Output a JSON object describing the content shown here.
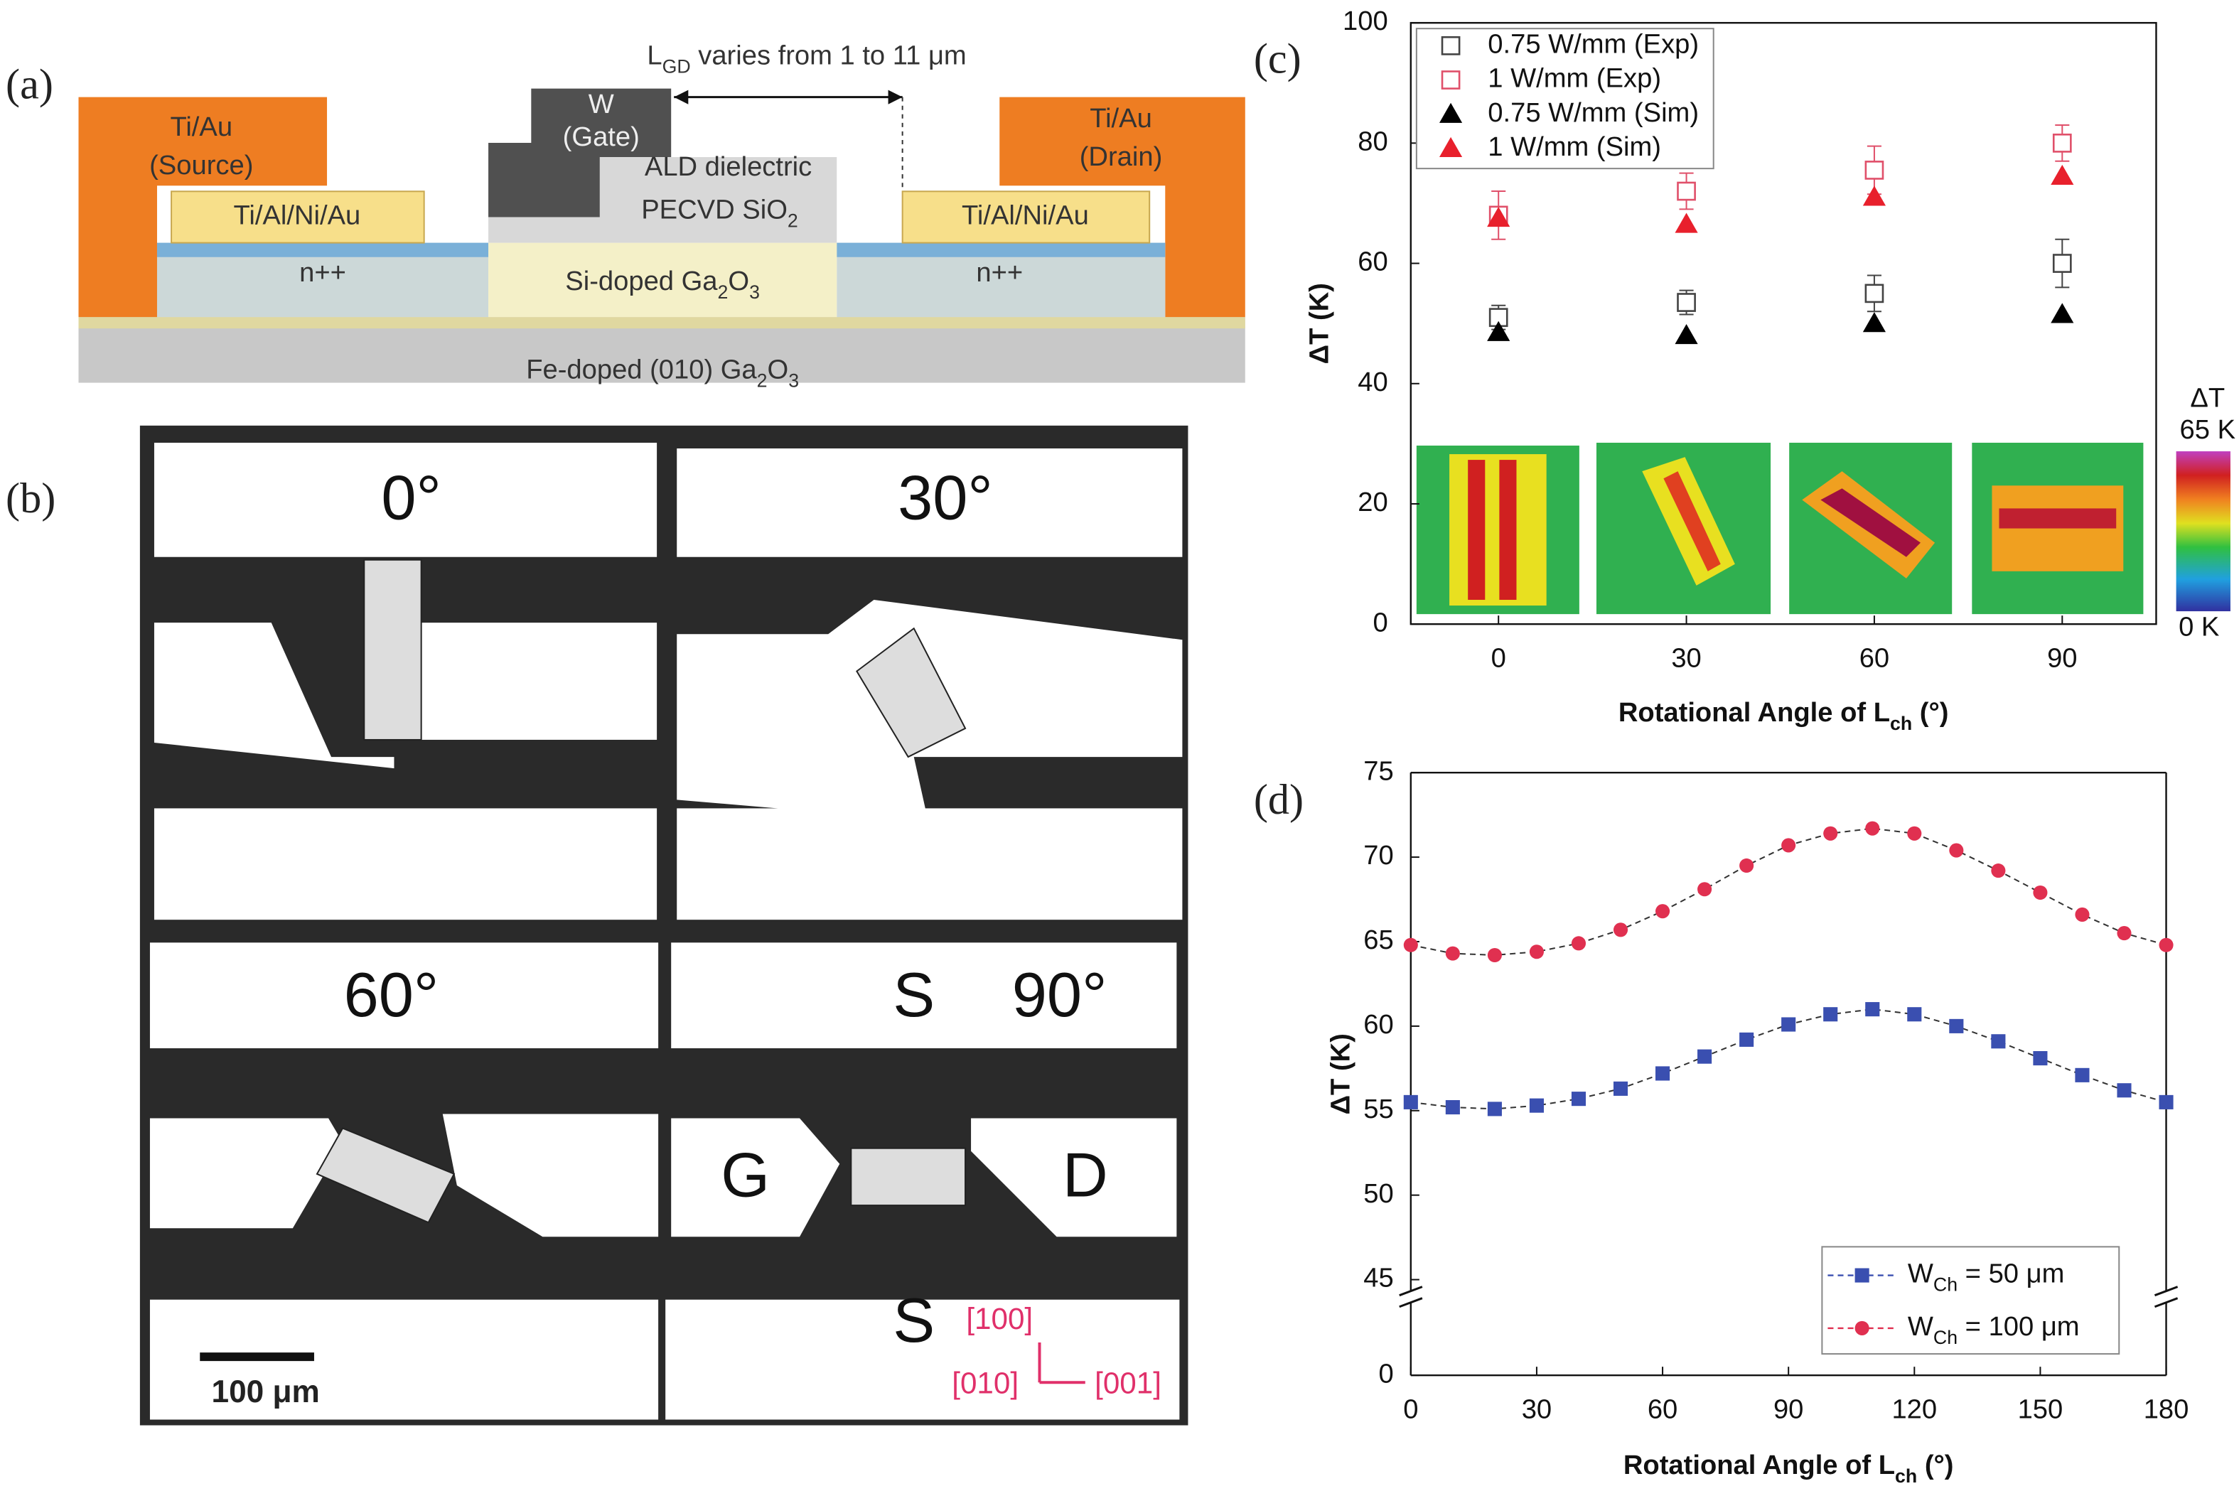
{
  "diagram_a": {
    "panel": "(a)",
    "lgd": [
      "L",
      "GD",
      " varies from 1 to 11 μm"
    ],
    "source_metal": "Ti/Au",
    "source": "(Source)",
    "drain_metal": "Ti/Au",
    "drain": "(Drain)",
    "gate_metal": "W",
    "gate": "(Gate)",
    "ald": "ALD dielectric",
    "pecvd": [
      "PECVD SiO",
      "2"
    ],
    "ohmic_left": "Ti/Al/Ni/Au",
    "ohmic_right": "Ti/Al/Ni/Au",
    "nplus_left": "n++",
    "nplus_right": "n++",
    "channel": [
      "Si-doped Ga",
      "2",
      "O",
      "3"
    ],
    "substrate": [
      "Fe-doped (010) Ga",
      "2",
      "O",
      "3"
    ]
  },
  "micrograph_b": {
    "panel": "(b)",
    "angles": [
      "0°",
      "30°",
      "60°",
      "90°"
    ],
    "source_top": "S",
    "gate": "G",
    "drain": "D",
    "source_bottom": "S",
    "scale": "100 μm",
    "dir_100": "[100]",
    "dir_010": "[010]",
    "dir_001": "[001]"
  },
  "chart_data": [
    {
      "type": "scatter",
      "panel": "(c)",
      "xlabel": [
        "Rotational Angle of L",
        "ch",
        " (°)"
      ],
      "ylabel": "ΔT (K)",
      "x": [
        0,
        30,
        60,
        90
      ],
      "xlim": [
        -14,
        105
      ],
      "xticks": [
        0,
        30,
        60,
        90
      ],
      "ylim": [
        0,
        100
      ],
      "yticks": [
        0,
        20,
        40,
        60,
        80,
        100
      ],
      "legend": "upper left",
      "colorbar": {
        "title": "ΔT",
        "max_label": "65 K",
        "min_label": "0 K"
      },
      "series": [
        {
          "name": "0.75 W/mm (Exp)",
          "color": "#444444",
          "marker": "square-open",
          "values": [
            51,
            53.5,
            55,
            60
          ],
          "errors": [
            2,
            2,
            3,
            4
          ]
        },
        {
          "name": "1 W/mm (Exp)",
          "color": "#e0506a",
          "marker": "square-open",
          "values": [
            68,
            72,
            75.5,
            80
          ],
          "errors": [
            4,
            3,
            4,
            3
          ]
        },
        {
          "name": "0.75 W/mm (Sim)",
          "color": "#000000",
          "marker": "triangle",
          "values": [
            48.5,
            48,
            50,
            51.5
          ]
        },
        {
          "name": "1 W/mm (Sim)",
          "color": "#e8202c",
          "marker": "triangle",
          "values": [
            67.5,
            66.5,
            71,
            74.5
          ]
        }
      ]
    },
    {
      "type": "line",
      "panel": "(d)",
      "xlabel": [
        "Rotational Angle of L",
        "ch",
        " (°)"
      ],
      "ylabel": "ΔT (K)",
      "x": [
        0,
        10,
        20,
        30,
        40,
        50,
        60,
        70,
        80,
        90,
        100,
        110,
        120,
        130,
        140,
        150,
        160,
        170,
        180
      ],
      "xlim": [
        0,
        180
      ],
      "xticks": [
        0,
        30,
        60,
        90,
        120,
        150,
        180
      ],
      "ylim": [
        0,
        75
      ],
      "ybreak": 45,
      "yticks": [
        0,
        45,
        50,
        55,
        60,
        65,
        70,
        75
      ],
      "legend": "lower right",
      "series": [
        {
          "name": [
            "W",
            "Ch",
            " = 50 μm"
          ],
          "color": "#3a4fb0",
          "marker": "square",
          "values": [
            55.5,
            55.2,
            55.1,
            55.3,
            55.7,
            56.3,
            57.2,
            58.2,
            59.2,
            60.1,
            60.7,
            61,
            60.7,
            60,
            59.1,
            58.1,
            57.1,
            56.2,
            55.5
          ]
        },
        {
          "name": [
            "W",
            "Ch",
            " = 100 μm"
          ],
          "color": "#e03050",
          "marker": "circle",
          "values": [
            64.8,
            64.3,
            64.2,
            64.4,
            64.9,
            65.7,
            66.8,
            68.1,
            69.5,
            70.7,
            71.4,
            71.7,
            71.4,
            70.4,
            69.2,
            67.9,
            66.6,
            65.5,
            64.8
          ]
        }
      ]
    }
  ]
}
